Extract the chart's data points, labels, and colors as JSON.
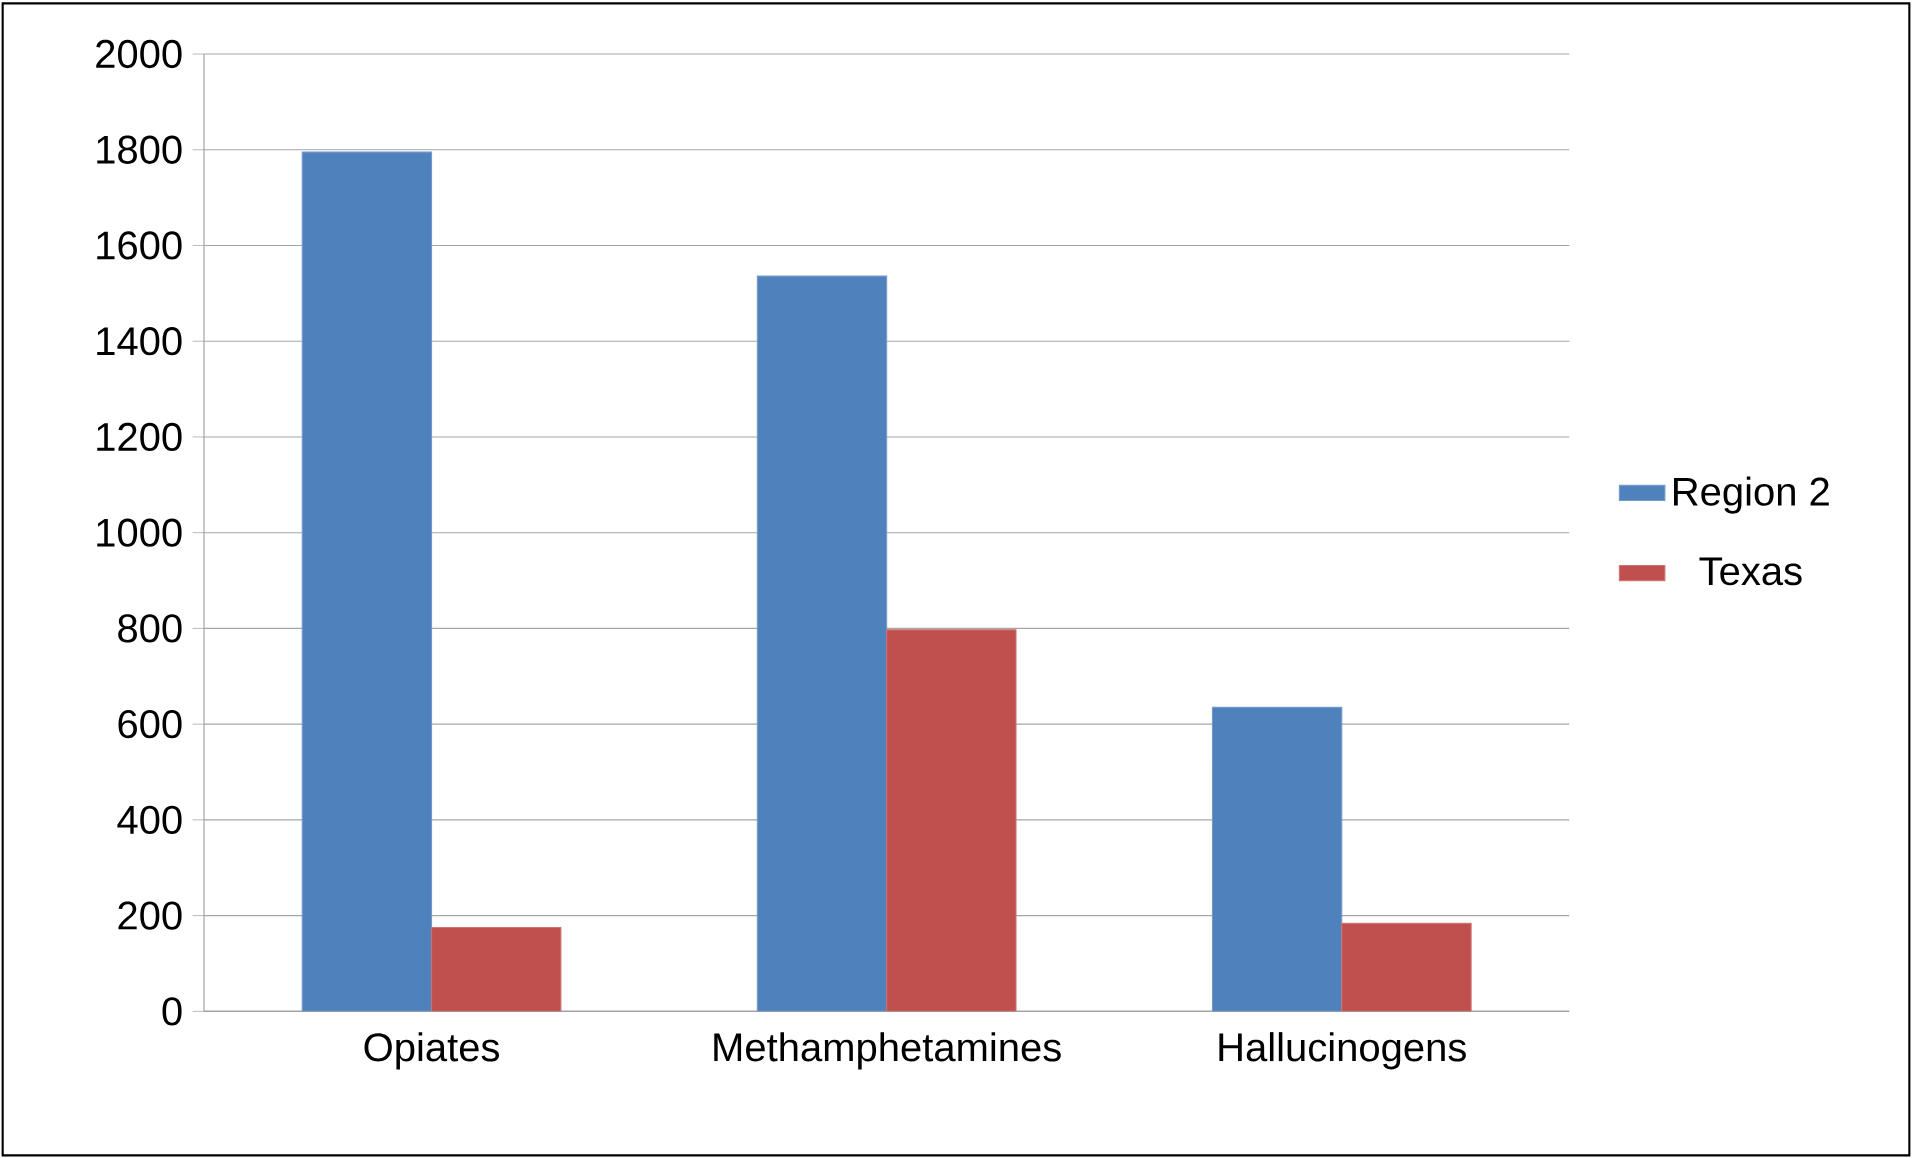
{
  "chart_data": {
    "type": "bar",
    "categories": [
      "Opiates",
      "Methamphetamines",
      "Hallucinogens"
    ],
    "series": [
      {
        "name": "Region 2",
        "color": "#4f81bd",
        "values": [
          1795,
          1536,
          635
        ]
      },
      {
        "name": "Texas",
        "color": "#c0504d",
        "values": [
          175,
          797,
          184
        ]
      }
    ],
    "ylim": [
      0,
      2000
    ],
    "yticks": [
      0,
      200,
      400,
      600,
      800,
      1000,
      1200,
      1400,
      1600,
      1800,
      2000
    ],
    "grid": "y",
    "legend": "right"
  }
}
